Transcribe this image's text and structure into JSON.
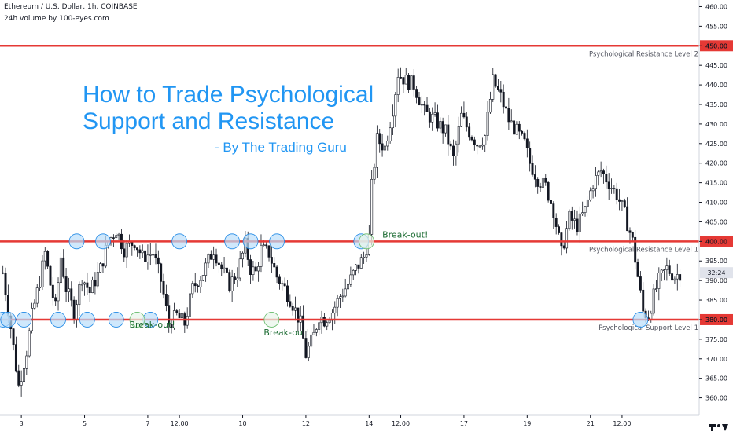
{
  "header": {
    "symbol_line": "Ethereum / U.S. Dollar, 1h, COINBASE",
    "indicator_line": "24h volume by 100-eyes.com"
  },
  "overlay": {
    "title_line1": "How to Trade Psychological",
    "title_line2": "Support and Resistance",
    "byline": "- By The Trading Guru"
  },
  "colors": {
    "level_line": "#e53935",
    "title_text": "#2196f3",
    "breakout_text": "#1b6b32",
    "circle_fill": "#bbdefb",
    "circle_stroke": "#1e88e5",
    "breakout_circle_fill": "#e8f5e9",
    "breakout_circle_stroke": "#66bb6a",
    "candle": "#131722",
    "price_tag": "#e53935"
  },
  "chart_data": {
    "type": "candlestick",
    "xlabel": "",
    "ylabel": "",
    "ylim": [
      355.7,
      461.7
    ],
    "y_ticks": [
      360,
      365,
      370,
      375,
      380,
      385,
      390,
      395,
      400,
      405,
      410,
      415,
      420,
      425,
      430,
      435,
      440,
      445,
      450,
      455,
      460
    ],
    "y_tick_labels": [
      "360.00",
      "365.00",
      "370.00",
      "375.00",
      "380.00",
      "385.00",
      "390.00",
      "395.00",
      "400.00",
      "405.00",
      "410.00",
      "415.00",
      "420.00",
      "425.00",
      "430.00",
      "435.00",
      "440.00",
      "445.00",
      "450.00",
      "455.00",
      "460.00"
    ],
    "x_ticks": [
      {
        "label": "3",
        "bar": 7
      },
      {
        "label": "5",
        "bar": 31
      },
      {
        "label": "7",
        "bar": 55
      },
      {
        "label": "12:00",
        "bar": 67
      },
      {
        "label": "10",
        "bar": 91
      },
      {
        "label": "12",
        "bar": 115
      },
      {
        "label": "14",
        "bar": 139
      },
      {
        "label": "12:00",
        "bar": 151
      },
      {
        "label": "17",
        "bar": 175
      },
      {
        "label": "19",
        "bar": 199
      },
      {
        "label": "21",
        "bar": 223
      },
      {
        "label": "12:00",
        "bar": 235
      }
    ],
    "bar_count": 258,
    "close_path": [
      {
        "bar": 0,
        "price": 392
      },
      {
        "bar": 3,
        "price": 378
      },
      {
        "bar": 6,
        "price": 363
      },
      {
        "bar": 9,
        "price": 372
      },
      {
        "bar": 11,
        "price": 381
      },
      {
        "bar": 14,
        "price": 390
      },
      {
        "bar": 16,
        "price": 397
      },
      {
        "bar": 18,
        "price": 389
      },
      {
        "bar": 20,
        "price": 383
      },
      {
        "bar": 22,
        "price": 396
      },
      {
        "bar": 24,
        "price": 388
      },
      {
        "bar": 27,
        "price": 382
      },
      {
        "bar": 30,
        "price": 391
      },
      {
        "bar": 33,
        "price": 387
      },
      {
        "bar": 37,
        "price": 393
      },
      {
        "bar": 40,
        "price": 400
      },
      {
        "bar": 43,
        "price": 403
      },
      {
        "bar": 46,
        "price": 398
      },
      {
        "bar": 50,
        "price": 400
      },
      {
        "bar": 53,
        "price": 396
      },
      {
        "bar": 57,
        "price": 397
      },
      {
        "bar": 60,
        "price": 390
      },
      {
        "bar": 63,
        "price": 379
      },
      {
        "bar": 66,
        "price": 381
      },
      {
        "bar": 69,
        "price": 379
      },
      {
        "bar": 72,
        "price": 388
      },
      {
        "bar": 76,
        "price": 392
      },
      {
        "bar": 80,
        "price": 398
      },
      {
        "bar": 83,
        "price": 393
      },
      {
        "bar": 86,
        "price": 389
      },
      {
        "bar": 89,
        "price": 392
      },
      {
        "bar": 92,
        "price": 399
      },
      {
        "bar": 94,
        "price": 393
      },
      {
        "bar": 96,
        "price": 392
      },
      {
        "bar": 98,
        "price": 398
      },
      {
        "bar": 101,
        "price": 397
      },
      {
        "bar": 104,
        "price": 391
      },
      {
        "bar": 107,
        "price": 388
      },
      {
        "bar": 110,
        "price": 384
      },
      {
        "bar": 113,
        "price": 379
      },
      {
        "bar": 115,
        "price": 371
      },
      {
        "bar": 118,
        "price": 376
      },
      {
        "bar": 120,
        "price": 381
      },
      {
        "bar": 122,
        "price": 380
      },
      {
        "bar": 125,
        "price": 382
      },
      {
        "bar": 128,
        "price": 386
      },
      {
        "bar": 131,
        "price": 389
      },
      {
        "bar": 134,
        "price": 393
      },
      {
        "bar": 137,
        "price": 396
      },
      {
        "bar": 139,
        "price": 401
      },
      {
        "bar": 140,
        "price": 414
      },
      {
        "bar": 142,
        "price": 426
      },
      {
        "bar": 145,
        "price": 424
      },
      {
        "bar": 148,
        "price": 434
      },
      {
        "bar": 150,
        "price": 443
      },
      {
        "bar": 153,
        "price": 441
      },
      {
        "bar": 156,
        "price": 440
      },
      {
        "bar": 160,
        "price": 433
      },
      {
        "bar": 164,
        "price": 431
      },
      {
        "bar": 168,
        "price": 428
      },
      {
        "bar": 171,
        "price": 421
      },
      {
        "bar": 174,
        "price": 432
      },
      {
        "bar": 177,
        "price": 428
      },
      {
        "bar": 180,
        "price": 425
      },
      {
        "bar": 183,
        "price": 427
      },
      {
        "bar": 186,
        "price": 441
      },
      {
        "bar": 189,
        "price": 437
      },
      {
        "bar": 192,
        "price": 431
      },
      {
        "bar": 195,
        "price": 428
      },
      {
        "bar": 198,
        "price": 425
      },
      {
        "bar": 200,
        "price": 420
      },
      {
        "bar": 203,
        "price": 416
      },
      {
        "bar": 206,
        "price": 414
      },
      {
        "bar": 209,
        "price": 408
      },
      {
        "bar": 212,
        "price": 397
      },
      {
        "bar": 215,
        "price": 406
      },
      {
        "bar": 218,
        "price": 404
      },
      {
        "bar": 221,
        "price": 408
      },
      {
        "bar": 224,
        "price": 415
      },
      {
        "bar": 227,
        "price": 418
      },
      {
        "bar": 230,
        "price": 415
      },
      {
        "bar": 233,
        "price": 412
      },
      {
        "bar": 236,
        "price": 407
      },
      {
        "bar": 239,
        "price": 400
      },
      {
        "bar": 241,
        "price": 391
      },
      {
        "bar": 243,
        "price": 382
      },
      {
        "bar": 245,
        "price": 381
      },
      {
        "bar": 247,
        "price": 386
      },
      {
        "bar": 249,
        "price": 390
      },
      {
        "bar": 252,
        "price": 393
      },
      {
        "bar": 255,
        "price": 391
      },
      {
        "bar": 257,
        "price": 392
      }
    ],
    "levels": [
      {
        "price": 450,
        "name": "Psychological Resistance Level 2",
        "price_label": "450.00"
      },
      {
        "price": 400,
        "name": "Psychological Resistance Level 1",
        "price_label": "400.00"
      },
      {
        "price": 380,
        "name": "Psychological Support Level 1",
        "price_label": "380.00"
      }
    ],
    "last_price_label": "32:24",
    "touch_circles": [
      {
        "bar": 28,
        "price": 400
      },
      {
        "bar": 38,
        "price": 400
      },
      {
        "bar": 67,
        "price": 400
      },
      {
        "bar": 87,
        "price": 400
      },
      {
        "bar": 94,
        "price": 400
      },
      {
        "bar": 104,
        "price": 400
      },
      {
        "bar": 136,
        "price": 400
      },
      {
        "bar": 0,
        "price": 380
      },
      {
        "bar": 2,
        "price": 380
      },
      {
        "bar": 8,
        "price": 380
      },
      {
        "bar": 21,
        "price": 380
      },
      {
        "bar": 32,
        "price": 380
      },
      {
        "bar": 43,
        "price": 380
      },
      {
        "bar": 56,
        "price": 380
      },
      {
        "bar": 242,
        "price": 380
      }
    ],
    "breakouts": [
      {
        "text": "Break-out!",
        "label_bar": 48,
        "label_price": 378
      },
      {
        "text": "Break-out!",
        "label_bar": 99,
        "label_price": 376
      },
      {
        "text": "Break-out!",
        "label_bar": 144,
        "label_price": 401
      }
    ],
    "grid": false
  }
}
